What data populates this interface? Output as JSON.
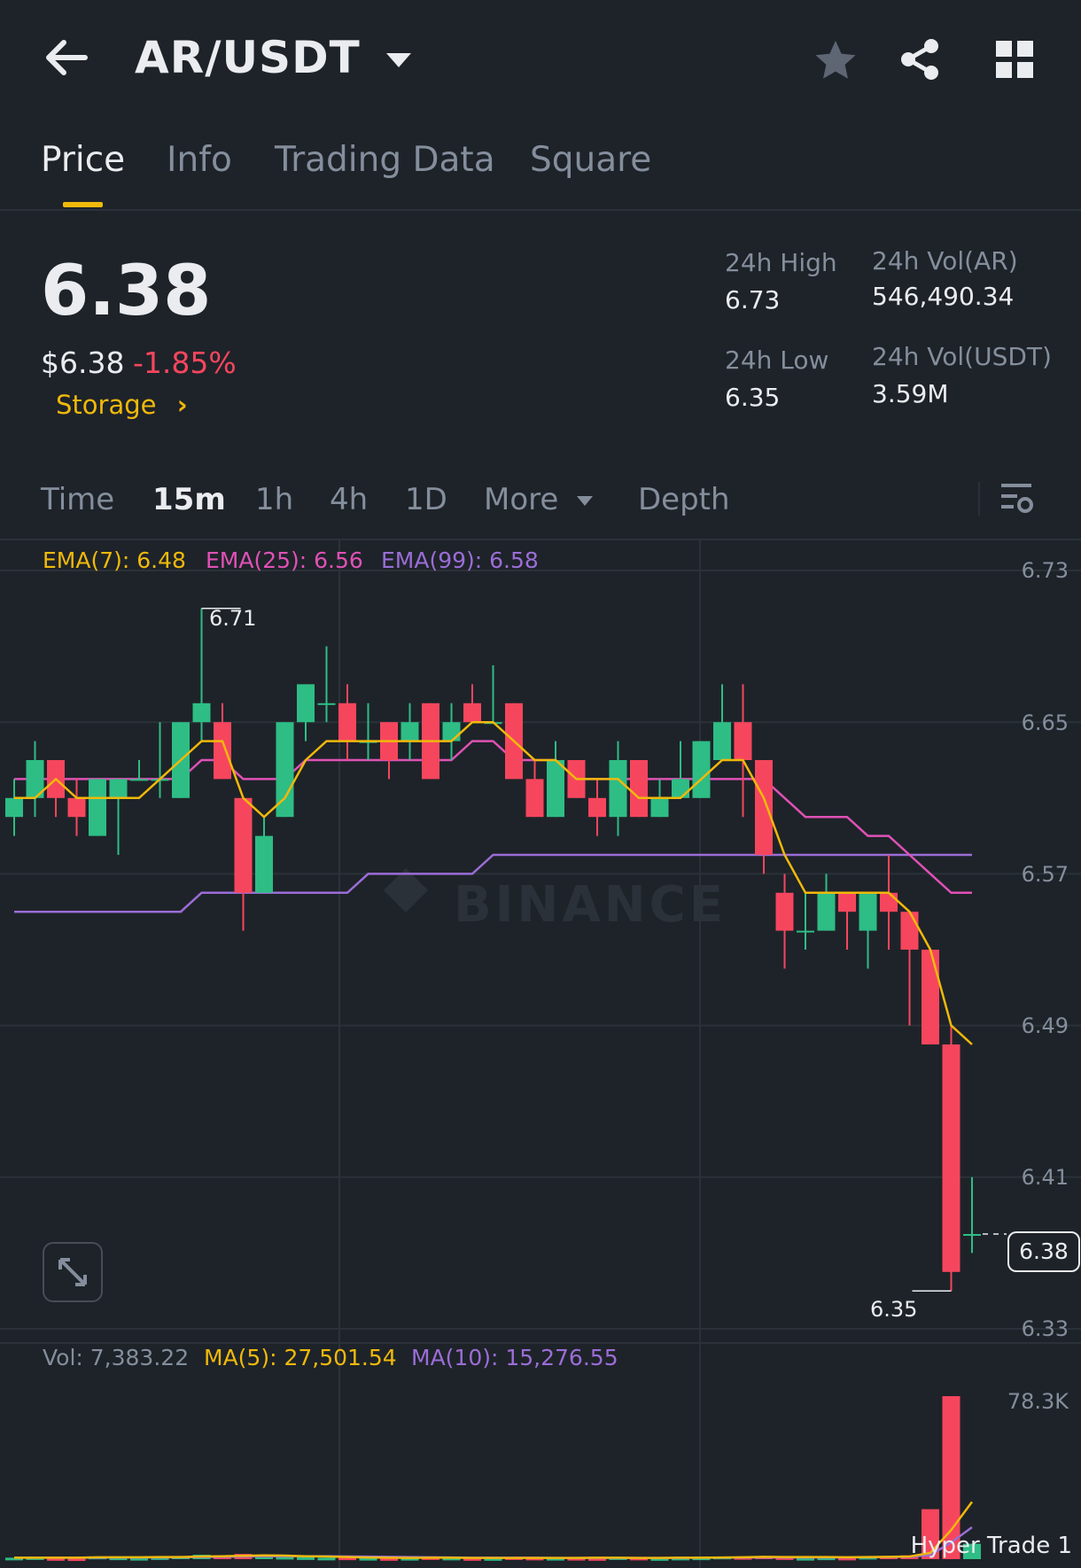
{
  "header": {
    "back_icon": "arrow-left-icon",
    "pair": "AR/USDT",
    "dropdown_icon": "caret-down-icon",
    "favorite_icon": "star-icon",
    "share_icon": "share-icon",
    "grid_icon": "grid-icon"
  },
  "tabs": [
    {
      "label": "Price",
      "active": true
    },
    {
      "label": "Info",
      "active": false
    },
    {
      "label": "Trading Data",
      "active": false
    },
    {
      "label": "Square",
      "active": false
    }
  ],
  "ticker": {
    "price": "6.38",
    "usd_price": "$6.38",
    "change": "-1.85%",
    "tag": "Storage",
    "tag_chevron": "›",
    "stats": {
      "high_label": "24h High",
      "high_value": "6.73",
      "low_label": "24h Low",
      "low_value": "6.35",
      "vol_ar_label": "24h Vol(AR)",
      "vol_ar_value": "546,490.34",
      "vol_usdt_label": "24h Vol(USDT)",
      "vol_usdt_value": "3.59M"
    }
  },
  "timeframes": [
    {
      "label": "Time",
      "active": false
    },
    {
      "label": "15m",
      "active": true
    },
    {
      "label": "1h",
      "active": false
    },
    {
      "label": "4h",
      "active": false
    },
    {
      "label": "1D",
      "active": false
    },
    {
      "label": "More",
      "active": false
    },
    {
      "label": "Depth",
      "active": false
    }
  ],
  "settings_icon": "chart-settings-icon",
  "expand_icon": "expand-icon",
  "indicators": {
    "ema7": "EMA(7): 6.48",
    "ema25": "EMA(25): 6.56",
    "ema99": "EMA(99): 6.58"
  },
  "volume_indicators": {
    "vol": "Vol: 7,383.22",
    "ma5": "MA(5): 27,501.54",
    "ma10": "MA(10): 15,276.55"
  },
  "watermark": "BINANCE",
  "footer_brand": "Hyper Trade 1",
  "colors": {
    "up": "#2ebd85",
    "down": "#f6465d",
    "accent": "#f0b90b",
    "ema7": "#f0b90b",
    "ema25": "#e051b6",
    "ema99": "#9b6dd7"
  },
  "chart_data": {
    "type": "candlestick",
    "price_axis_ticks": [
      "6.73",
      "6.65",
      "6.57",
      "6.49",
      "6.41",
      "6.33"
    ],
    "price_range": [
      6.33,
      6.73
    ],
    "high_marker": "6.71",
    "low_marker": "6.35",
    "current_price_label": "6.38",
    "volume_axis_ticks": [
      "78.3K"
    ],
    "candles": [
      {
        "o": 6.6,
        "h": 6.62,
        "c": 6.61,
        "l": 6.59
      },
      {
        "o": 6.61,
        "h": 6.64,
        "c": 6.63,
        "l": 6.6
      },
      {
        "o": 6.63,
        "h": 6.63,
        "c": 6.61,
        "l": 6.6
      },
      {
        "o": 6.61,
        "h": 6.62,
        "c": 6.6,
        "l": 6.59
      },
      {
        "o": 6.59,
        "h": 6.62,
        "c": 6.62,
        "l": 6.59
      },
      {
        "o": 6.61,
        "h": 6.62,
        "c": 6.62,
        "l": 6.58
      },
      {
        "o": 6.62,
        "h": 6.63,
        "c": 6.62,
        "l": 6.62
      },
      {
        "o": 6.62,
        "h": 6.65,
        "c": 6.62,
        "l": 6.61
      },
      {
        "o": 6.61,
        "h": 6.65,
        "c": 6.65,
        "l": 6.61
      },
      {
        "o": 6.65,
        "h": 6.71,
        "c": 6.66,
        "l": 6.64
      },
      {
        "o": 6.65,
        "h": 6.66,
        "c": 6.62,
        "l": 6.62
      },
      {
        "o": 6.61,
        "h": 6.61,
        "c": 6.56,
        "l": 6.54
      },
      {
        "o": 6.56,
        "h": 6.6,
        "c": 6.59,
        "l": 6.56
      },
      {
        "o": 6.6,
        "h": 6.65,
        "c": 6.65,
        "l": 6.6
      },
      {
        "o": 6.65,
        "h": 6.67,
        "c": 6.67,
        "l": 6.64
      },
      {
        "o": 6.66,
        "h": 6.69,
        "c": 6.66,
        "l": 6.65
      },
      {
        "o": 6.66,
        "h": 6.67,
        "c": 6.64,
        "l": 6.63
      },
      {
        "o": 6.64,
        "h": 6.66,
        "c": 6.64,
        "l": 6.63
      },
      {
        "o": 6.65,
        "h": 6.65,
        "c": 6.63,
        "l": 6.62
      },
      {
        "o": 6.64,
        "h": 6.66,
        "c": 6.65,
        "l": 6.63
      },
      {
        "o": 6.66,
        "h": 6.66,
        "c": 6.62,
        "l": 6.62
      },
      {
        "o": 6.64,
        "h": 6.66,
        "c": 6.65,
        "l": 6.63
      },
      {
        "o": 6.66,
        "h": 6.67,
        "c": 6.65,
        "l": 6.65
      },
      {
        "o": 6.65,
        "h": 6.68,
        "c": 6.65,
        "l": 6.65
      },
      {
        "o": 6.66,
        "h": 6.66,
        "c": 6.62,
        "l": 6.62
      },
      {
        "o": 6.62,
        "h": 6.63,
        "c": 6.6,
        "l": 6.6
      },
      {
        "o": 6.6,
        "h": 6.64,
        "c": 6.63,
        "l": 6.6
      },
      {
        "o": 6.63,
        "h": 6.63,
        "c": 6.61,
        "l": 6.61
      },
      {
        "o": 6.61,
        "h": 6.62,
        "c": 6.6,
        "l": 6.59
      },
      {
        "o": 6.6,
        "h": 6.64,
        "c": 6.63,
        "l": 6.59
      },
      {
        "o": 6.63,
        "h": 6.63,
        "c": 6.6,
        "l": 6.6
      },
      {
        "o": 6.6,
        "h": 6.62,
        "c": 6.61,
        "l": 6.6
      },
      {
        "o": 6.61,
        "h": 6.64,
        "c": 6.62,
        "l": 6.61
      },
      {
        "o": 6.61,
        "h": 6.64,
        "c": 6.64,
        "l": 6.61
      },
      {
        "o": 6.63,
        "h": 6.67,
        "c": 6.65,
        "l": 6.63
      },
      {
        "o": 6.65,
        "h": 6.67,
        "c": 6.63,
        "l": 6.6
      },
      {
        "o": 6.63,
        "h": 6.63,
        "c": 6.58,
        "l": 6.57
      },
      {
        "o": 6.56,
        "h": 6.57,
        "c": 6.54,
        "l": 6.52
      },
      {
        "o": 6.54,
        "h": 6.56,
        "c": 6.54,
        "l": 6.53
      },
      {
        "o": 6.54,
        "h": 6.57,
        "c": 6.56,
        "l": 6.54
      },
      {
        "o": 6.56,
        "h": 6.56,
        "c": 6.55,
        "l": 6.53
      },
      {
        "o": 6.54,
        "h": 6.56,
        "c": 6.56,
        "l": 6.52
      },
      {
        "o": 6.56,
        "h": 6.58,
        "c": 6.55,
        "l": 6.53
      },
      {
        "o": 6.55,
        "h": 6.55,
        "c": 6.53,
        "l": 6.49
      },
      {
        "o": 6.53,
        "h": 6.53,
        "c": 6.48,
        "l": 6.48
      },
      {
        "o": 6.48,
        "h": 6.49,
        "c": 6.36,
        "l": 6.35
      },
      {
        "o": 6.38,
        "h": 6.41,
        "c": 6.38,
        "l": 6.37
      }
    ],
    "ema7": [
      6.61,
      6.61,
      6.62,
      6.61,
      6.61,
      6.61,
      6.61,
      6.62,
      6.63,
      6.64,
      6.64,
      6.61,
      6.6,
      6.61,
      6.63,
      6.64,
      6.64,
      6.64,
      6.64,
      6.64,
      6.64,
      6.64,
      6.65,
      6.65,
      6.64,
      6.63,
      6.63,
      6.62,
      6.62,
      6.62,
      6.61,
      6.61,
      6.61,
      6.62,
      6.63,
      6.63,
      6.61,
      6.58,
      6.56,
      6.56,
      6.56,
      6.56,
      6.56,
      6.55,
      6.53,
      6.49,
      6.48
    ],
    "ema25": [
      6.62,
      6.62,
      6.62,
      6.62,
      6.62,
      6.62,
      6.62,
      6.62,
      6.62,
      6.63,
      6.63,
      6.62,
      6.62,
      6.62,
      6.63,
      6.63,
      6.63,
      6.63,
      6.63,
      6.63,
      6.63,
      6.63,
      6.64,
      6.64,
      6.63,
      6.63,
      6.63,
      6.62,
      6.62,
      6.62,
      6.62,
      6.62,
      6.62,
      6.62,
      6.62,
      6.62,
      6.62,
      6.61,
      6.6,
      6.6,
      6.6,
      6.59,
      6.59,
      6.58,
      6.57,
      6.56,
      6.56
    ],
    "ema99": [
      6.55,
      6.55,
      6.55,
      6.55,
      6.55,
      6.55,
      6.55,
      6.55,
      6.55,
      6.56,
      6.56,
      6.56,
      6.56,
      6.56,
      6.56,
      6.56,
      6.56,
      6.57,
      6.57,
      6.57,
      6.57,
      6.57,
      6.57,
      6.58,
      6.58,
      6.58,
      6.58,
      6.58,
      6.58,
      6.58,
      6.58,
      6.58,
      6.58,
      6.58,
      6.58,
      6.58,
      6.58,
      6.58,
      6.58,
      6.58,
      6.58,
      6.58,
      6.58,
      6.58,
      6.58,
      6.58,
      6.58
    ],
    "volume": [
      700,
      900,
      500,
      400,
      1200,
      800,
      600,
      900,
      1500,
      2100,
      1800,
      2500,
      1600,
      1100,
      900,
      700,
      800,
      600,
      500,
      600,
      900,
      700,
      500,
      500,
      900,
      700,
      600,
      600,
      500,
      900,
      700,
      500,
      700,
      800,
      1200,
      1000,
      1400,
      900,
      600,
      800,
      700,
      1100,
      1500,
      1800,
      24000,
      78300,
      7400
    ],
    "volume_ma5": [
      700,
      700,
      700,
      700,
      900,
      900,
      900,
      1000,
      1000,
      1300,
      1400,
      1600,
      1800,
      1700,
      1400,
      1300,
      1000,
      800,
      700,
      600,
      700,
      700,
      600,
      600,
      600,
      600,
      600,
      600,
      700,
      700,
      600,
      600,
      700,
      700,
      800,
      900,
      1100,
      1000,
      1000,
      1000,
      900,
      1000,
      1100,
      1300,
      3000,
      14000,
      27500
    ],
    "volume_ma10": [
      700,
      700,
      700,
      700,
      700,
      800,
      800,
      800,
      900,
      1000,
      1100,
      1300,
      1400,
      1400,
      1400,
      1400,
      1300,
      1200,
      1100,
      1000,
      900,
      800,
      700,
      700,
      700,
      700,
      600,
      600,
      600,
      600,
      600,
      600,
      600,
      700,
      700,
      800,
      800,
      800,
      800,
      800,
      800,
      900,
      1000,
      1100,
      2000,
      8000,
      15300
    ]
  }
}
